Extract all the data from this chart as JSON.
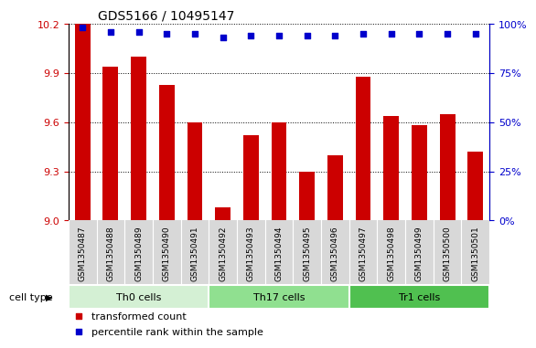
{
  "title": "GDS5166 / 10495147",
  "samples": [
    "GSM1350487",
    "GSM1350488",
    "GSM1350489",
    "GSM1350490",
    "GSM1350491",
    "GSM1350492",
    "GSM1350493",
    "GSM1350494",
    "GSM1350495",
    "GSM1350496",
    "GSM1350497",
    "GSM1350498",
    "GSM1350499",
    "GSM1350500",
    "GSM1350501"
  ],
  "transformed_count": [
    10.2,
    9.94,
    10.0,
    9.83,
    9.6,
    9.08,
    9.52,
    9.6,
    9.3,
    9.4,
    9.88,
    9.64,
    9.58,
    9.65,
    9.42
  ],
  "percentile_rank": [
    98,
    96,
    96,
    95,
    95,
    93,
    94,
    94,
    94,
    94,
    95,
    95,
    95,
    95,
    95
  ],
  "cell_types": [
    {
      "label": "Th0 cells",
      "start": 0,
      "end": 5,
      "color": "#d4f0d4"
    },
    {
      "label": "Th17 cells",
      "start": 5,
      "end": 10,
      "color": "#90e090"
    },
    {
      "label": "Tr1 cells",
      "start": 10,
      "end": 15,
      "color": "#50c050"
    }
  ],
  "bar_color": "#cc0000",
  "dot_color": "#0000cc",
  "ylim_left": [
    9.0,
    10.2
  ],
  "ylim_right": [
    0,
    100
  ],
  "yticks_left": [
    9.0,
    9.3,
    9.6,
    9.9,
    10.2
  ],
  "yticks_right": [
    0,
    25,
    50,
    75,
    100
  ],
  "ytick_labels_right": [
    "0%",
    "25%",
    "50%",
    "75%",
    "100%"
  ],
  "ylabel_color_left": "#cc0000",
  "ylabel_color_right": "#0000cc",
  "plot_bg_color": "#ffffff",
  "xtick_bg_color": "#d8d8d8",
  "legend_items": [
    {
      "label": "transformed count",
      "color": "#cc0000",
      "marker": "s"
    },
    {
      "label": "percentile rank within the sample",
      "color": "#0000cc",
      "marker": "s"
    }
  ],
  "cell_type_label": "cell type"
}
